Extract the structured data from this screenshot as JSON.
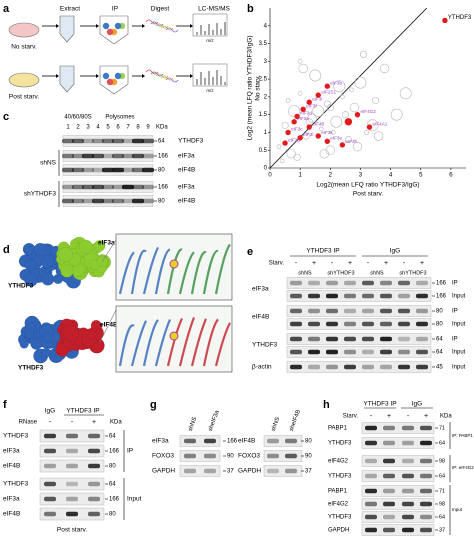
{
  "panel_a": {
    "letter": "a",
    "steps": [
      "Extract",
      "IP",
      "Digest",
      "LC-MS/MS"
    ],
    "conditions": [
      "No starv.",
      "Post starv."
    ],
    "axis_labels": [
      "m/z",
      "m/z"
    ]
  },
  "chart_data": {
    "type": "scatter",
    "letter": "b",
    "y_label": "Log2 (mean LFQ ratio YTHDF3/IgG)",
    "y_sublabel": "No starv.",
    "x_label": "Log2(mean LFQ ratio YTHDF3/IgG)",
    "x_sublabel": "Post starv.",
    "xlim": [
      0,
      6.5
    ],
    "ylim": [
      0,
      4.5
    ],
    "xticks": [
      0,
      1,
      2,
      3,
      4,
      5,
      6
    ],
    "yticks": [
      0,
      0.5,
      1,
      1.5,
      2,
      2.5,
      3,
      3.5,
      4
    ],
    "series": [
      {
        "color": "#b5b5b5",
        "x": [
          0.3,
          0.5,
          0.7,
          0.8,
          1.0,
          1.2,
          1.4,
          1.5,
          1.7,
          1.9,
          2.0,
          2.2,
          2.4,
          2.6,
          2.8,
          3.0,
          3.2,
          3.5,
          3.8,
          4.2,
          0.4,
          0.9,
          1.1,
          1.6,
          2.1,
          2.5,
          2.9,
          3.4,
          0.6,
          1.3,
          1.8,
          2.3,
          2.7,
          3.1,
          3.6,
          4.5,
          1.0,
          2.0
        ],
        "values": [
          0.6,
          1.2,
          0.4,
          1.6,
          2.1,
          0.9,
          1.4,
          2.6,
          1.1,
          1.8,
          0.5,
          1.3,
          2.0,
          0.8,
          1.7,
          2.4,
          1.0,
          1.9,
          2.8,
          1.5,
          0.2,
          0.3,
          2.8,
          1.6,
          1.0,
          1.5,
          0.6,
          1.2,
          1.9,
          1.3,
          0.4,
          2.3,
          2.2,
          3.2,
          0.9,
          2.1,
          3.0,
          1.7
        ]
      },
      {
        "color": "#e31a1c",
        "label_color": "#9b3fbf",
        "x": [
          1.9,
          1.6,
          1.3,
          1.1,
          2.9,
          0.9,
          0.8,
          1.3,
          0.6,
          1.0,
          1.6,
          1.9,
          0.5,
          2.4,
          3.3,
          2.6
        ],
        "values": [
          2.3,
          2.05,
          1.85,
          1.65,
          1.5,
          1.45,
          1.3,
          1.15,
          1.0,
          0.85,
          0.9,
          0.75,
          0.7,
          0.65,
          1.15,
          1.3
        ],
        "point_labels": [
          "eIF3b",
          "eIF2S1",
          "eIF3i",
          "eIF3f",
          "eIF4G2",
          "eIF3d",
          "eIF3a",
          "eIF4B",
          "eIF3c",
          "eIF3l",
          "eIF3k",
          "eIF3e",
          "eIF3g",
          "eIF3h",
          "eIF4A1",
          null
        ]
      },
      {
        "color": "#e31a1c",
        "label_color": "#000000",
        "x": [
          5.8
        ],
        "values": [
          4.15
        ],
        "point_labels": [
          "YTHDF3"
        ]
      }
    ]
  },
  "panel_c": {
    "letter": "c",
    "fractions": [
      "40/60/80S",
      "Polysomes"
    ],
    "lanes": [
      1,
      2,
      3,
      4,
      5,
      6,
      7,
      8,
      9
    ],
    "unit": "KDa",
    "groups": [
      "shNS",
      "shYTHDF3"
    ],
    "proteins": [
      "YTHDF3",
      "eIF3a",
      "eIF4B",
      "eIF3a",
      "eIF4B"
    ],
    "markers": [
      64,
      166,
      80,
      166,
      80
    ]
  },
  "panel_d": {
    "letter": "d",
    "top": [
      "YTHDF3",
      "eIF3a"
    ],
    "bottom": [
      "YTHDF3",
      "eIF4B"
    ]
  },
  "panel_e": {
    "letter": "e",
    "groups": [
      "YTHDF3 IP",
      "IgG"
    ],
    "treatment": "Starv.",
    "treatment_states": [
      "-",
      "+",
      "-",
      "+",
      "-",
      "+",
      "-",
      "+"
    ],
    "shrna": [
      "shNS",
      "shYTHDF3",
      "shNS",
      "shYTHDF3"
    ],
    "proteins": [
      "eIF3a",
      "eIF4B",
      "YTHDF3",
      "β-actin"
    ],
    "markers": [
      166,
      166,
      80,
      80,
      64,
      64,
      45
    ],
    "fractions": [
      "IP",
      "Input",
      "IP",
      "Input",
      "IP",
      "Input",
      "Input"
    ]
  },
  "panel_f": {
    "letter": "f",
    "groups": [
      "IgG",
      "YTHDF3 IP"
    ],
    "treatment": "RNase",
    "treatment_states": [
      "-",
      "-",
      "+"
    ],
    "unit": "KDa",
    "proteins": [
      "YTHDF3",
      "eIF3a",
      "eIF4B",
      "YTHDF3",
      "eIF3a",
      "eIF4B"
    ],
    "markers": [
      64,
      166,
      80,
      64,
      166,
      80
    ],
    "fractions": [
      "IP",
      "Input"
    ],
    "condition": "Post starv."
  },
  "panel_g": {
    "letter": "g",
    "blots": [
      {
        "lanes": [
          "shNS",
          "sheIF3a"
        ],
        "proteins": [
          "eIF3a",
          "FOXO3",
          "GAPDH"
        ],
        "markers": [
          166,
          90,
          37
        ]
      },
      {
        "lanes": [
          "shNS",
          "sheIF4B"
        ],
        "proteins": [
          "eIF4B",
          "FOXO3",
          "GAPDH"
        ],
        "markers": [
          80,
          90,
          37
        ]
      }
    ]
  },
  "panel_h": {
    "letter": "h",
    "groups": [
      "YTHDF3 IP",
      "IgG"
    ],
    "treatment": "Starv.",
    "treatment_states": [
      "-",
      "+",
      "-",
      "+"
    ],
    "unit": "KDa",
    "proteins": [
      "PABP1",
      "YTHDF3",
      "eIF4G2",
      "YTHDF3",
      "PABP1",
      "eIF4G2",
      "YTHDF3",
      "GAPDH"
    ],
    "markers": [
      71,
      64,
      98,
      64,
      71,
      98,
      64,
      37
    ],
    "fractions": [
      "IP: PABP1",
      "IP: eIF4G2",
      "Input"
    ]
  }
}
